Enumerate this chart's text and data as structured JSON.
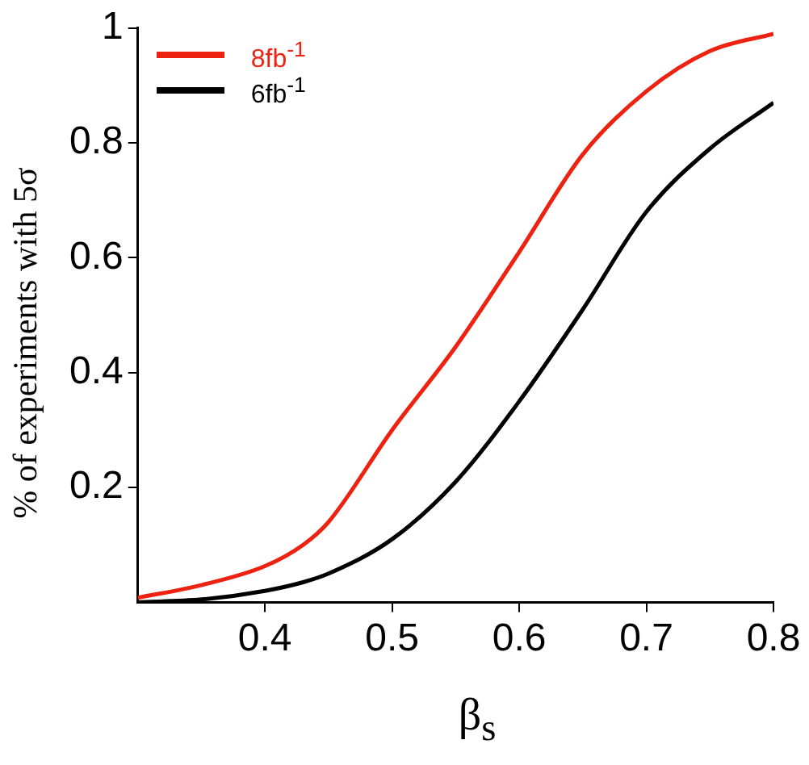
{
  "chart_data": {
    "type": "line",
    "xlabel": "β$_{s}$",
    "ylabel": "% of experiments with 5σ",
    "x": [
      0.3,
      0.35,
      0.4,
      0.43,
      0.45,
      0.5,
      0.55,
      0.6,
      0.65,
      0.7,
      0.75,
      0.8
    ],
    "xlim": [
      0.3,
      0.8
    ],
    "xticks": [
      0.4,
      0.5,
      0.6,
      0.7,
      0.8
    ],
    "ylim": [
      0,
      1
    ],
    "yticks": [
      0.2,
      0.4,
      0.6,
      0.8,
      1
    ],
    "grid": false,
    "legend": "top left",
    "marker": "none",
    "line_style": "solid",
    "series": [
      {
        "name": "8fb$^{-1}$",
        "color": "#ee2211",
        "values": [
          0.008,
          0.03,
          0.063,
          0.1,
          0.14,
          0.3,
          0.445,
          0.61,
          0.78,
          0.89,
          0.96,
          0.99
        ]
      },
      {
        "name": "6fb$^{-1}$",
        "color": "#000000",
        "values": [
          0,
          0.005,
          0.02,
          0.035,
          0.05,
          0.11,
          0.21,
          0.35,
          0.51,
          0.68,
          0.79,
          0.87
        ]
      }
    ]
  }
}
